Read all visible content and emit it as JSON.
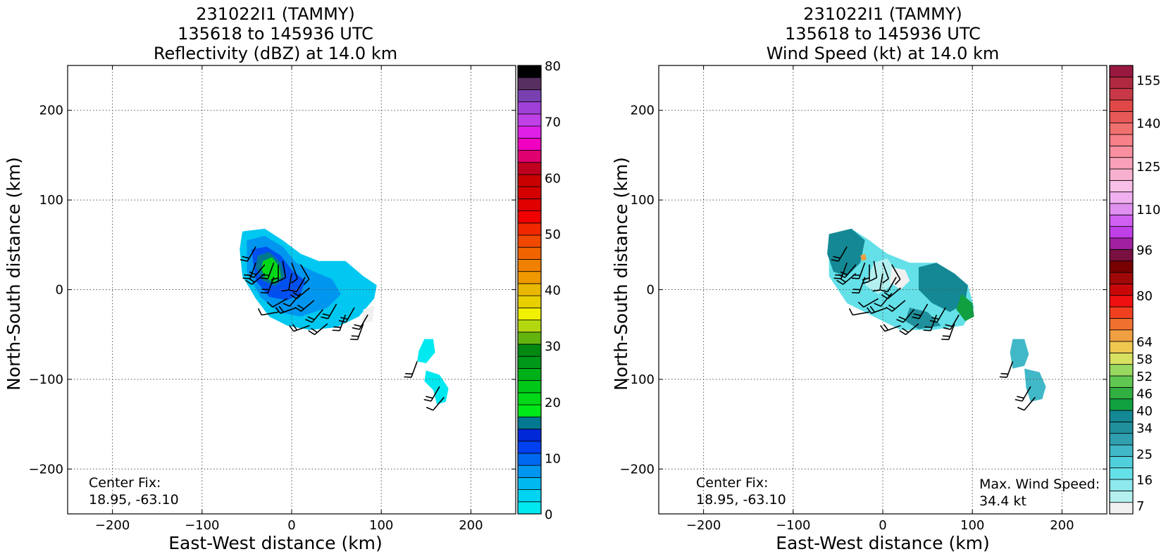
{
  "chart_data": [
    {
      "type": "heatmap",
      "title": [
        "231022I1 (TAMMY)",
        "135618 to 145936 UTC",
        "Reflectivity (dBZ) at 14.0 km"
      ],
      "xlabel": "East-West distance (km)",
      "ylabel": "North-South distance (km)",
      "xlim": [
        -250,
        250
      ],
      "ylim": [
        -250,
        250
      ],
      "xticks": [
        -200,
        -100,
        0,
        100,
        200
      ],
      "yticks": [
        -200,
        -100,
        0,
        100,
        200
      ],
      "grid": true,
      "annotations": {
        "center_fix_label": "Center Fix:",
        "center_fix_value": "18.95, -63.10"
      },
      "colorbar": {
        "label": "Reflectivity (dBZ)",
        "min": 0,
        "max": 80,
        "tick_labels": [
          "0",
          "10",
          "20",
          "30",
          "40",
          "50",
          "60",
          "70",
          "80"
        ],
        "colors": [
          "#00e8f0",
          "#00d4f0",
          "#00b8f0",
          "#0096f0",
          "#0068f0",
          "#0040f0",
          "#0028d8",
          "#007890",
          "#00e818",
          "#00d818",
          "#00c818",
          "#00b018",
          "#009818",
          "#008810",
          "#64b410",
          "#b4d810",
          "#f0f000",
          "#e8d000",
          "#e8b800",
          "#f09800",
          "#f08000",
          "#f06400",
          "#f04800",
          "#f02800",
          "#f00000",
          "#e00000",
          "#d40000",
          "#c80000",
          "#c00020",
          "#e00070",
          "#f000c0",
          "#e020e8",
          "#c040e8",
          "#a040d8",
          "#7840b0",
          "#583060",
          "#000000"
        ]
      },
      "regions": [
        {
          "name": "main-outer",
          "color": "#00c8f0",
          "points": [
            [
              -55,
              65
            ],
            [
              -30,
              68
            ],
            [
              -10,
              55
            ],
            [
              10,
              40
            ],
            [
              30,
              32
            ],
            [
              60,
              32
            ],
            [
              80,
              15
            ],
            [
              95,
              5
            ],
            [
              92,
              -10
            ],
            [
              75,
              -30
            ],
            [
              50,
              -42
            ],
            [
              20,
              -45
            ],
            [
              -5,
              -40
            ],
            [
              -25,
              -30
            ],
            [
              -40,
              -10
            ],
            [
              -55,
              15
            ],
            [
              -58,
              45
            ]
          ]
        },
        {
          "name": "main-mid",
          "color": "#0096f0",
          "points": [
            [
              -50,
              55
            ],
            [
              -30,
              60
            ],
            [
              -10,
              48
            ],
            [
              5,
              30
            ],
            [
              25,
              20
            ],
            [
              45,
              12
            ],
            [
              55,
              -5
            ],
            [
              40,
              -20
            ],
            [
              10,
              -30
            ],
            [
              -15,
              -25
            ],
            [
              -35,
              -8
            ],
            [
              -50,
              20
            ]
          ]
        },
        {
          "name": "main-inner",
          "color": "#0050f0",
          "points": [
            [
              -45,
              45
            ],
            [
              -28,
              48
            ],
            [
              -12,
              38
            ],
            [
              0,
              22
            ],
            [
              15,
              10
            ],
            [
              10,
              -5
            ],
            [
              -5,
              -12
            ],
            [
              -25,
              -8
            ],
            [
              -40,
              10
            ]
          ]
        },
        {
          "name": "main-core-a",
          "color": "#007890",
          "points": [
            [
              -38,
              38
            ],
            [
              -25,
              42
            ],
            [
              -12,
              30
            ],
            [
              -8,
              15
            ],
            [
              -18,
              4
            ],
            [
              -32,
              10
            ],
            [
              -40,
              25
            ]
          ]
        },
        {
          "name": "main-core-b",
          "color": "#00d818",
          "points": [
            [
              -32,
              32
            ],
            [
              -22,
              36
            ],
            [
              -14,
              26
            ],
            [
              -12,
              14
            ],
            [
              -20,
              8
            ],
            [
              -30,
              14
            ],
            [
              -34,
              24
            ]
          ]
        },
        {
          "name": "main-white",
          "color": "#f0f0f0",
          "points": [
            [
              80,
              -22
            ],
            [
              92,
              -18
            ],
            [
              90,
              -35
            ],
            [
              78,
              -38
            ]
          ]
        },
        {
          "name": "se-cell-1",
          "color": "#00e8f0",
          "points": [
            [
              148,
              -55
            ],
            [
              158,
              -55
            ],
            [
              160,
              -70
            ],
            [
              150,
              -82
            ],
            [
              140,
              -80
            ],
            [
              142,
              -68
            ]
          ]
        },
        {
          "name": "se-cell-2",
          "color": "#00e8f0",
          "points": [
            [
              150,
              -90
            ],
            [
              165,
              -95
            ],
            [
              175,
              -110
            ],
            [
              172,
              -125
            ],
            [
              162,
              -128
            ],
            [
              158,
              -112
            ],
            [
              148,
              -102
            ]
          ]
        }
      ],
      "barbs": [
        [
          -40,
          48,
          210,
          15
        ],
        [
          -40,
          30,
          200,
          20
        ],
        [
          -30,
          28,
          220,
          15
        ],
        [
          -20,
          30,
          200,
          20
        ],
        [
          -15,
          28,
          180,
          15
        ],
        [
          -30,
          18,
          230,
          15
        ],
        [
          -20,
          14,
          200,
          15
        ],
        [
          -10,
          32,
          170,
          10
        ],
        [
          0,
          30,
          160,
          10
        ],
        [
          10,
          28,
          150,
          10
        ],
        [
          0,
          18,
          190,
          10
        ],
        [
          15,
          14,
          210,
          10
        ],
        [
          20,
          2,
          230,
          15
        ],
        [
          10,
          -4,
          220,
          10
        ],
        [
          -5,
          -10,
          240,
          10
        ],
        [
          -15,
          -25,
          260,
          10
        ],
        [
          5,
          -20,
          250,
          15
        ],
        [
          25,
          -12,
          230,
          15
        ],
        [
          35,
          -22,
          220,
          15
        ],
        [
          50,
          -16,
          210,
          15
        ],
        [
          60,
          -28,
          200,
          15
        ],
        [
          70,
          -20,
          210,
          15
        ],
        [
          80,
          -38,
          200,
          15
        ],
        [
          85,
          -28,
          210,
          15
        ],
        [
          20,
          -40,
          250,
          15
        ],
        [
          40,
          -38,
          230,
          15
        ],
        [
          140,
          -80,
          200,
          15
        ],
        [
          165,
          -108,
          210,
          15
        ],
        [
          170,
          -120,
          220,
          10
        ]
      ]
    },
    {
      "type": "heatmap",
      "title": [
        "231022I1 (TAMMY)",
        "135618 to 145936 UTC",
        "Wind Speed (kt) at 14.0 km"
      ],
      "xlabel": "East-West distance (km)",
      "ylabel": "North-South distance (km)",
      "xlim": [
        -250,
        250
      ],
      "ylim": [
        -250,
        250
      ],
      "xticks": [
        -200,
        -100,
        0,
        100,
        200
      ],
      "yticks": [
        -200,
        -100,
        0,
        100,
        200
      ],
      "grid": true,
      "annotations": {
        "center_fix_label": "Center Fix:",
        "center_fix_value": "18.95, -63.10",
        "max_wind_label": "Max. Wind Speed:",
        "max_wind_value": "34.4 kt"
      },
      "colorbar": {
        "label": "Wind Speed (kt)",
        "min": 4,
        "max": 160,
        "tick_labels": [
          "7",
          "16",
          "25",
          "34",
          "40",
          "46",
          "52",
          "58",
          "64",
          "80",
          "96",
          "110",
          "125",
          "140",
          "155"
        ],
        "colors": [
          "#f0f0f0",
          "#b4f0f0",
          "#8ce8ec",
          "#64e0e8",
          "#50d0dc",
          "#40b8c8",
          "#30a0b0",
          "#20909c",
          "#148894",
          "#10a040",
          "#30b040",
          "#60c850",
          "#98d860",
          "#d8e060",
          "#f0c850",
          "#f0a040",
          "#f07030",
          "#f04020",
          "#f01010",
          "#c80808",
          "#a00808",
          "#780000",
          "#781040",
          "#a020a0",
          "#c040e8",
          "#d060f0",
          "#e090f0",
          "#f0b0f0",
          "#f8c0e8",
          "#f8b0d0",
          "#f8a0b8",
          "#f890a0",
          "#f88088",
          "#f07070",
          "#e85858",
          "#e04848",
          "#c83848",
          "#b02840",
          "#981840"
        ]
      },
      "regions": [
        {
          "name": "main-outer",
          "color": "#64e0e8",
          "points": [
            [
              -60,
              62
            ],
            [
              -35,
              68
            ],
            [
              -15,
              55
            ],
            [
              5,
              40
            ],
            [
              30,
              30
            ],
            [
              60,
              30
            ],
            [
              80,
              18
            ],
            [
              95,
              5
            ],
            [
              102,
              -20
            ],
            [
              90,
              -40
            ],
            [
              55,
              -45
            ],
            [
              20,
              -45
            ],
            [
              -10,
              -30
            ],
            [
              -40,
              -15
            ],
            [
              -60,
              15
            ]
          ]
        },
        {
          "name": "main-teal-west",
          "color": "#148894",
          "points": [
            [
              -60,
              62
            ],
            [
              -35,
              68
            ],
            [
              -20,
              55
            ],
            [
              -25,
              30
            ],
            [
              -40,
              15
            ],
            [
              -55,
              20
            ],
            [
              -62,
              40
            ]
          ]
        },
        {
          "name": "main-teal-east",
          "color": "#148894",
          "points": [
            [
              40,
              25
            ],
            [
              60,
              30
            ],
            [
              80,
              18
            ],
            [
              95,
              5
            ],
            [
              92,
              -15
            ],
            [
              75,
              -25
            ],
            [
              55,
              -15
            ],
            [
              40,
              0
            ]
          ]
        },
        {
          "name": "main-teal-south",
          "color": "#20909c",
          "points": [
            [
              30,
              -20
            ],
            [
              50,
              -25
            ],
            [
              65,
              -40
            ],
            [
              40,
              -44
            ],
            [
              25,
              -35
            ]
          ]
        },
        {
          "name": "main-pale",
          "color": "#b4f0f0",
          "points": [
            [
              -10,
              30
            ],
            [
              5,
              35
            ],
            [
              15,
              20
            ],
            [
              10,
              5
            ],
            [
              -5,
              -5
            ],
            [
              -20,
              5
            ]
          ]
        },
        {
          "name": "main-white",
          "color": "#f0f0f0",
          "points": [
            [
              10,
              25
            ],
            [
              25,
              22
            ],
            [
              30,
              10
            ],
            [
              20,
              0
            ],
            [
              8,
              8
            ]
          ]
        },
        {
          "name": "main-green",
          "color": "#10a040",
          "points": [
            [
              88,
              -5
            ],
            [
              100,
              -15
            ],
            [
              102,
              -30
            ],
            [
              92,
              -35
            ],
            [
              82,
              -22
            ]
          ]
        },
        {
          "name": "main-orange-dot",
          "color": "#f0a040",
          "points": [
            [
              -25,
              38
            ],
            [
              -20,
              40
            ],
            [
              -18,
              34
            ],
            [
              -23,
              32
            ]
          ]
        },
        {
          "name": "se-cell-1",
          "color": "#40b8c8",
          "points": [
            [
              145,
              -55
            ],
            [
              158,
              -55
            ],
            [
              163,
              -72
            ],
            [
              158,
              -85
            ],
            [
              145,
              -88
            ],
            [
              142,
              -70
            ]
          ]
        },
        {
          "name": "se-cell-2",
          "color": "#40b8c8",
          "points": [
            [
              158,
              -88
            ],
            [
              175,
              -92
            ],
            [
              182,
              -108
            ],
            [
              178,
              -122
            ],
            [
              165,
              -125
            ],
            [
              160,
              -110
            ]
          ]
        }
      ],
      "barbs": [
        [
          -40,
          48,
          210,
          15
        ],
        [
          -40,
          30,
          200,
          20
        ],
        [
          -30,
          28,
          220,
          15
        ],
        [
          -20,
          30,
          200,
          20
        ],
        [
          -15,
          28,
          180,
          15
        ],
        [
          -30,
          18,
          230,
          15
        ],
        [
          -20,
          14,
          200,
          15
        ],
        [
          -10,
          32,
          170,
          10
        ],
        [
          0,
          30,
          160,
          10
        ],
        [
          10,
          28,
          150,
          10
        ],
        [
          0,
          18,
          190,
          10
        ],
        [
          15,
          14,
          210,
          10
        ],
        [
          20,
          2,
          230,
          15
        ],
        [
          10,
          -4,
          220,
          10
        ],
        [
          -5,
          -10,
          240,
          10
        ],
        [
          -15,
          -25,
          260,
          10
        ],
        [
          5,
          -20,
          250,
          15
        ],
        [
          25,
          -12,
          230,
          15
        ],
        [
          35,
          -22,
          220,
          15
        ],
        [
          50,
          -16,
          210,
          15
        ],
        [
          60,
          -28,
          200,
          15
        ],
        [
          70,
          -20,
          210,
          15
        ],
        [
          80,
          -38,
          200,
          15
        ],
        [
          85,
          -28,
          210,
          15
        ],
        [
          20,
          -40,
          250,
          15
        ],
        [
          40,
          -38,
          230,
          15
        ],
        [
          145,
          -80,
          200,
          15
        ],
        [
          165,
          -108,
          210,
          15
        ],
        [
          170,
          -120,
          220,
          10
        ]
      ]
    }
  ]
}
